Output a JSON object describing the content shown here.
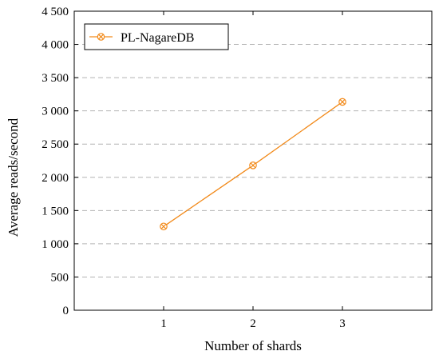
{
  "chart_data": {
    "type": "line",
    "title": "",
    "xlabel": "Number of shards",
    "ylabel": "Average reads/second",
    "x": [
      1,
      2,
      3
    ],
    "series": [
      {
        "name": "PL-NagareDB",
        "values": [
          1260,
          2180,
          3135
        ],
        "color": "#f28a1a",
        "marker": "circled-x"
      }
    ],
    "xlim": [
      0,
      4
    ],
    "ylim": [
      0,
      4500
    ],
    "x_ticks": [
      1,
      2,
      3
    ],
    "x_tick_labels": [
      "1",
      "2",
      "3"
    ],
    "y_ticks": [
      0,
      500,
      1000,
      1500,
      2000,
      2500,
      3000,
      3500,
      4000,
      4500
    ],
    "y_tick_labels": [
      "0",
      "500",
      "1 000",
      "1 500",
      "2 000",
      "2 500",
      "3 000",
      "3 500",
      "4 000",
      "4 500"
    ],
    "grid": "horizontal-dashed",
    "legend": "top-left"
  }
}
